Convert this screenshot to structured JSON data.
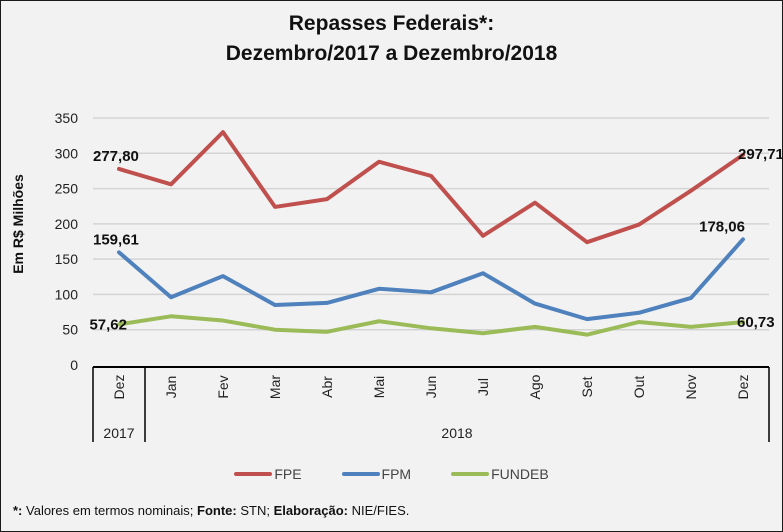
{
  "chart_data": {
    "type": "line",
    "title": "Repasses Federais*:",
    "subtitle": "Dezembro/2017 a Dezembro/2018",
    "xlabel": "",
    "ylabel": "Em R$ Milhões",
    "ylim": [
      0,
      350
    ],
    "yticks": [
      0,
      50,
      100,
      150,
      200,
      250,
      300,
      350
    ],
    "grid": true,
    "legend_position": "bottom",
    "categories": [
      "Dez",
      "Jan",
      "Fev",
      "Mar",
      "Abr",
      "Mai",
      "Jun",
      "Jul",
      "Ago",
      "Set",
      "Out",
      "Nov",
      "Dez"
    ],
    "year_groups": [
      {
        "label": "2017",
        "span": 1
      },
      {
        "label": "2018",
        "span": 12
      }
    ],
    "series": [
      {
        "name": "FPE",
        "color": "#c0504d",
        "values": [
          277.8,
          256,
          330,
          224,
          235,
          288,
          268,
          183,
          230,
          174,
          199,
          247,
          297.71
        ],
        "labels": {
          "0": "277,80",
          "12": "297,71"
        }
      },
      {
        "name": "FPM",
        "color": "#4f81bd",
        "values": [
          159.61,
          96,
          126,
          85,
          88,
          108,
          103,
          130,
          87,
          65,
          74,
          95,
          178.06
        ],
        "labels": {
          "0": "159,61",
          "12": "178,06"
        }
      },
      {
        "name": "FUNDEB",
        "color": "#9bbb59",
        "values": [
          57.62,
          69,
          63,
          50,
          47,
          62,
          52,
          45,
          54,
          43,
          61,
          54,
          60.73
        ],
        "labels": {
          "0": "57,62",
          "12": "60,73"
        }
      }
    ]
  },
  "footnote": {
    "star": "*:",
    "text1": " Valores em termos nominais; ",
    "fonte_label": "Fonte:",
    "fonte_value": " STN; ",
    "elab_label": "Elaboração:",
    "elab_value": " NIE/FIES."
  }
}
